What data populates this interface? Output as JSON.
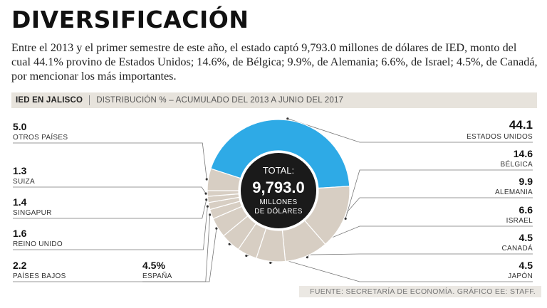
{
  "header": {
    "title": "DIVERSIFICACIÓN",
    "lead": "Entre el 2013 y el primer semestre de este año, el estado captó 9,793.0 millones de dólares de IED, monto del cual 44.1% provino de Estados Unidos; 14.6%, de Bélgica; 9.9%, de Alemania; 6.6%, de Israel; 4.5%, de Canadá, por mencionar los más importantes."
  },
  "band": {
    "left": "IED EN JALISCO",
    "right": "DISTRIBUCIÓN % – ACUMULADO DEL 2013 A JUNIO DEL 2017"
  },
  "colors": {
    "highlight": "#2eaae6",
    "slice": "#d7cec3",
    "core": "#1a1a1a",
    "leader": "#777777"
  },
  "chart_data": {
    "type": "pie",
    "style": "donut",
    "center": {
      "label_top": "TOTAL:",
      "value": "9,793.0",
      "line1": "MILLONES",
      "line2": "DE DÓLARES"
    },
    "slices": [
      {
        "name": "ESTADOS UNIDOS",
        "value": 44.1,
        "value_label": "44.1",
        "highlight": true
      },
      {
        "name": "BÉLGICA",
        "value": 14.6,
        "value_label": "14.6"
      },
      {
        "name": "ALEMANIA",
        "value": 9.9,
        "value_label": "9.9"
      },
      {
        "name": "ISRAEL",
        "value": 6.6,
        "value_label": "6.6"
      },
      {
        "name": "CANADÁ",
        "value": 4.5,
        "value_label": "4.5"
      },
      {
        "name": "JAPÓN",
        "value": 4.5,
        "value_label": "4.5"
      },
      {
        "name": "ESPAÑA",
        "value": 4.5,
        "value_label": "4.5%"
      },
      {
        "name": "PAÍSES BAJOS",
        "value": 2.2,
        "value_label": "2.2"
      },
      {
        "name": "REINO UNIDO",
        "value": 1.6,
        "value_label": "1.6"
      },
      {
        "name": "SINGAPUR",
        "value": 1.4,
        "value_label": "1.4"
      },
      {
        "name": "SUIZA",
        "value": 1.3,
        "value_label": "1.3"
      },
      {
        "name": "OTROS PAÍSES",
        "value": 5.0,
        "value_label": "5.0"
      }
    ]
  },
  "source": "FUENTE: SECRETARÍA DE ECONOMÍA. GRÁFICO EE: STAFF."
}
